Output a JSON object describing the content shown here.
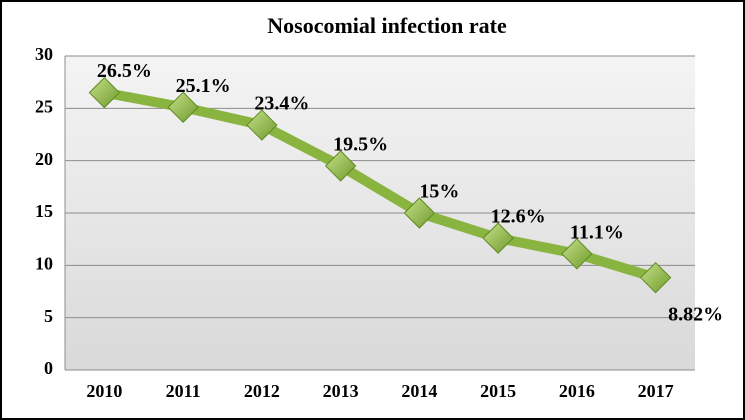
{
  "chart_data": {
    "type": "line",
    "title": "Nosocomial infection rate",
    "categories": [
      "2010",
      "2011",
      "2012",
      "2013",
      "2014",
      "2015",
      "2016",
      "2017"
    ],
    "values": [
      26.5,
      25.1,
      23.4,
      19.5,
      15,
      12.6,
      11.1,
      8.82
    ],
    "value_labels": [
      "26.5%",
      "25.1%",
      "23.4%",
      "19.5%",
      "15%",
      "12.6%",
      "11.1%",
      "8.82%"
    ],
    "color": "#8ab440",
    "ylim": [
      0,
      30
    ],
    "yticks": [
      0,
      5,
      10,
      15,
      20,
      25,
      30
    ],
    "grid": true
  }
}
